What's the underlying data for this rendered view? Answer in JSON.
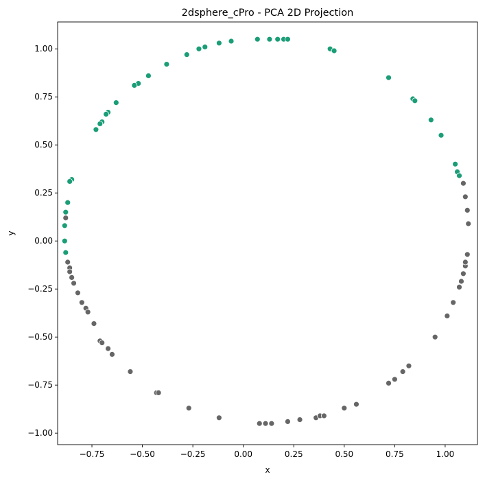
{
  "chart_data": {
    "type": "scatter",
    "title": "2dsphere_cPro - PCA 2D Projection",
    "xlabel": "x",
    "ylabel": "y",
    "xlim": [
      -0.92,
      1.16
    ],
    "ylim": [
      -1.06,
      1.14
    ],
    "grid": false,
    "legend": "none",
    "xticks": [
      -0.75,
      -0.5,
      -0.25,
      0.0,
      0.25,
      0.5,
      0.75,
      1.0
    ],
    "xtick_labels": [
      "−0.75",
      "−0.50",
      "−0.25",
      "0.00",
      "0.25",
      "0.50",
      "0.75",
      "1.00"
    ],
    "yticks": [
      -1.0,
      -0.75,
      -0.5,
      -0.25,
      0.0,
      0.25,
      0.5,
      0.75,
      1.0
    ],
    "ytick_labels": [
      "−1.00",
      "−0.75",
      "−0.50",
      "−0.25",
      "0.00",
      "0.25",
      "0.50",
      "0.75",
      "1.00"
    ],
    "series": [
      {
        "color": "#1b9e77",
        "points": [
          [
            0.07,
            1.05
          ],
          [
            0.13,
            1.05
          ],
          [
            0.17,
            1.05
          ],
          [
            0.2,
            1.05
          ],
          [
            0.22,
            1.05
          ],
          [
            -0.06,
            1.04
          ],
          [
            -0.12,
            1.03
          ],
          [
            -0.19,
            1.01
          ],
          [
            -0.22,
            1.0
          ],
          [
            -0.28,
            0.97
          ],
          [
            -0.38,
            0.92
          ],
          [
            -0.47,
            0.86
          ],
          [
            -0.52,
            0.82
          ],
          [
            -0.54,
            0.81
          ],
          [
            -0.63,
            0.72
          ],
          [
            -0.67,
            0.67
          ],
          [
            -0.68,
            0.66
          ],
          [
            -0.7,
            0.62
          ],
          [
            -0.71,
            0.61
          ],
          [
            -0.73,
            0.58
          ],
          [
            -0.85,
            0.32
          ],
          [
            -0.86,
            0.31
          ],
          [
            -0.87,
            0.2
          ],
          [
            -0.88,
            0.15
          ],
          [
            -0.885,
            0.08
          ],
          [
            -0.885,
            0.0
          ],
          [
            -0.88,
            -0.06
          ],
          [
            0.43,
            1.0
          ],
          [
            0.45,
            0.99
          ],
          [
            0.72,
            0.85
          ],
          [
            0.84,
            0.74
          ],
          [
            0.85,
            0.73
          ],
          [
            0.93,
            0.63
          ],
          [
            0.98,
            0.55
          ],
          [
            1.05,
            0.4
          ],
          [
            1.06,
            0.36
          ],
          [
            1.07,
            0.34
          ]
        ]
      },
      {
        "color": "#666666",
        "points": [
          [
            -0.88,
            0.12
          ],
          [
            -0.87,
            -0.11
          ],
          [
            -0.86,
            -0.14
          ],
          [
            -0.86,
            -0.16
          ],
          [
            -0.85,
            -0.19
          ],
          [
            -0.84,
            -0.22
          ],
          [
            -0.82,
            -0.27
          ],
          [
            -0.8,
            -0.32
          ],
          [
            -0.78,
            -0.35
          ],
          [
            -0.77,
            -0.37
          ],
          [
            -0.74,
            -0.43
          ],
          [
            -0.71,
            -0.52
          ],
          [
            -0.7,
            -0.53
          ],
          [
            -0.67,
            -0.56
          ],
          [
            -0.65,
            -0.59
          ],
          [
            -0.56,
            -0.68
          ],
          [
            -0.43,
            -0.79
          ],
          [
            -0.42,
            -0.79
          ],
          [
            -0.27,
            -0.87
          ],
          [
            -0.12,
            -0.92
          ],
          [
            0.08,
            -0.95
          ],
          [
            0.11,
            -0.95
          ],
          [
            0.14,
            -0.95
          ],
          [
            0.22,
            -0.94
          ],
          [
            0.28,
            -0.93
          ],
          [
            0.36,
            -0.92
          ],
          [
            0.38,
            -0.91
          ],
          [
            0.4,
            -0.91
          ],
          [
            0.5,
            -0.87
          ],
          [
            0.56,
            -0.85
          ],
          [
            0.72,
            -0.74
          ],
          [
            0.75,
            -0.72
          ],
          [
            0.79,
            -0.68
          ],
          [
            0.82,
            -0.65
          ],
          [
            0.95,
            -0.5
          ],
          [
            1.01,
            -0.39
          ],
          [
            1.04,
            -0.32
          ],
          [
            1.07,
            -0.24
          ],
          [
            1.08,
            -0.21
          ],
          [
            1.09,
            -0.17
          ],
          [
            1.1,
            -0.13
          ],
          [
            1.1,
            -0.11
          ],
          [
            1.11,
            -0.07
          ],
          [
            1.115,
            0.09
          ],
          [
            1.11,
            0.16
          ],
          [
            1.1,
            0.23
          ],
          [
            1.09,
            0.3
          ]
        ]
      }
    ]
  }
}
